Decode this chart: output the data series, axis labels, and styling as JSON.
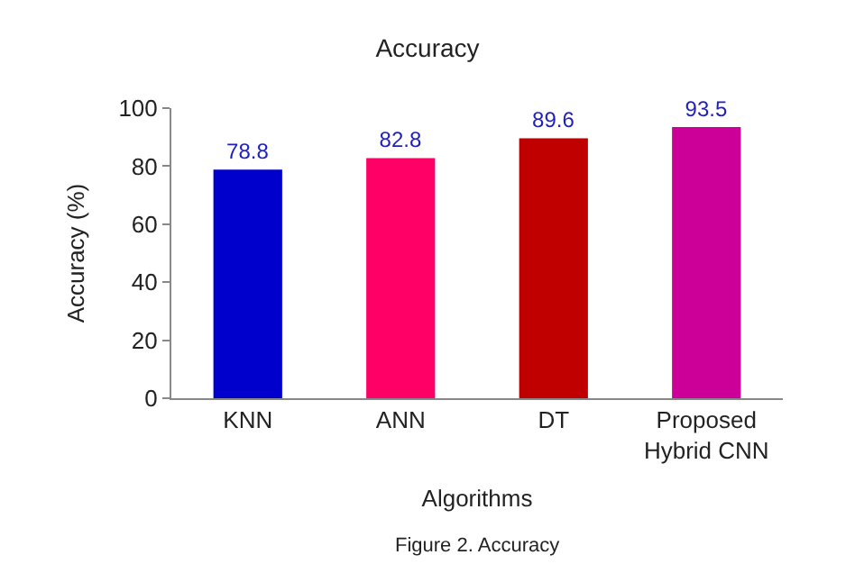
{
  "chart_data": {
    "type": "bar",
    "title": "Accuracy",
    "xlabel": "Algorithms",
    "ylabel": "Accuracy (%)",
    "categories": [
      "KNN",
      "ANN",
      "DT",
      "Proposed Hybrid CNN"
    ],
    "values": [
      78.8,
      82.8,
      89.6,
      93.5
    ],
    "colors": [
      "#0000cc",
      "#ff0066",
      "#c00000",
      "#cc0099"
    ],
    "ylim": [
      0,
      100
    ],
    "yticks": [
      0,
      20,
      40,
      60,
      80,
      100
    ],
    "data_labels": true,
    "annotations": [
      "Figure 2. Accuracy"
    ]
  }
}
